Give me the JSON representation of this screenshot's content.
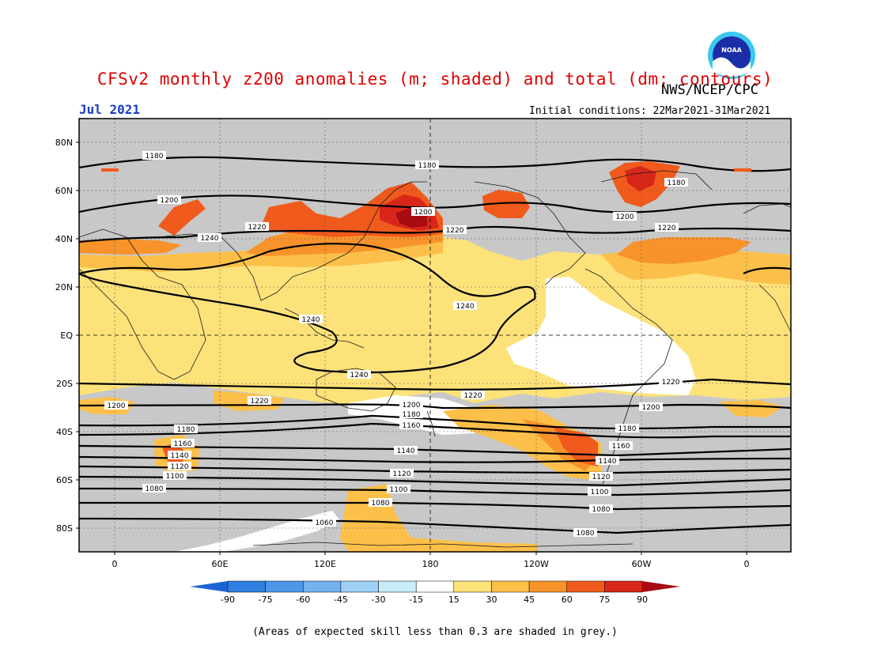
{
  "header": {
    "title": "CFSv2 monthly z200 anomalies (m; shaded) and total (dm; contours)",
    "agency": "NWS/NCEP/CPC",
    "period": "Jul 2021",
    "initial_conditions": "Initial conditions: 22Mar2021-31Mar2021",
    "logo_text": "NOAA"
  },
  "map": {
    "lat_labels": [
      "80N",
      "60N",
      "40N",
      "20N",
      "EQ",
      "20S",
      "40S",
      "60S",
      "80S"
    ],
    "lon_labels": [
      "0",
      "60E",
      "120E",
      "180",
      "120W",
      "60W",
      "0"
    ],
    "contour_labels": [
      "1060",
      "1080",
      "1100",
      "1120",
      "1140",
      "1160",
      "1180",
      "1200",
      "1220",
      "1240"
    ]
  },
  "colorbar": {
    "ticks": [
      "-90",
      "-75",
      "-60",
      "-45",
      "-30",
      "-15",
      "15",
      "30",
      "45",
      "60",
      "75",
      "90"
    ],
    "colors": [
      "#1e63d6",
      "#2f7fe0",
      "#4e96ea",
      "#73b2f0",
      "#9ed0f6",
      "#c8ecf8",
      "#ffffff",
      "#ffe27a",
      "#fcc04a",
      "#f8932c",
      "#f05a1c",
      "#d8261a",
      "#a80c10"
    ]
  },
  "footnote": "(Areas of expected skill less than 0.3 are shaded in grey.)",
  "colors": {
    "title": "#dd0000",
    "period": "#1a3cc8",
    "grey": "#c8c8c8",
    "land_line": "#1a1a1a"
  }
}
